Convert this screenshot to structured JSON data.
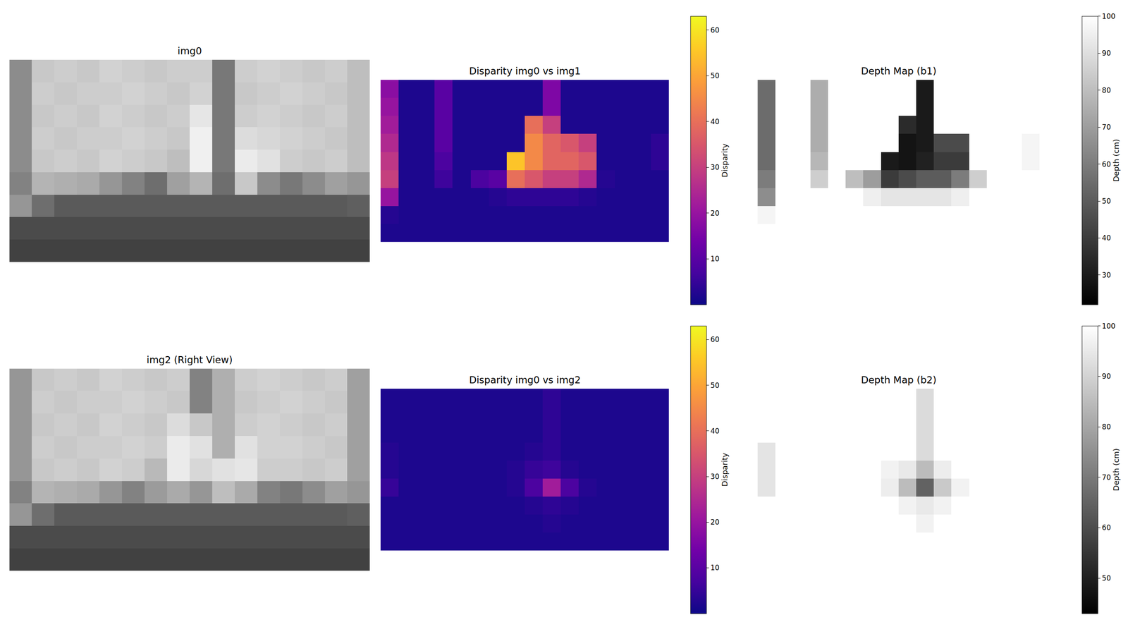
{
  "chart_data": [
    {
      "type": "image",
      "title": "img0",
      "color": "gray",
      "tick_labels": false,
      "zlim": [
        0,
        255
      ],
      "cells": [
        [
          140,
          200,
          205,
          200,
          210,
          205,
          200,
          205,
          205,
          120,
          205,
          210,
          205,
          200,
          205,
          190
        ],
        [
          140,
          205,
          200,
          205,
          205,
          210,
          205,
          200,
          210,
          120,
          200,
          205,
          210,
          205,
          200,
          190
        ],
        [
          140,
          200,
          205,
          200,
          210,
          205,
          200,
          205,
          230,
          120,
          205,
          210,
          205,
          200,
          205,
          190
        ],
        [
          140,
          205,
          200,
          205,
          205,
          210,
          205,
          200,
          240,
          120,
          220,
          215,
          210,
          205,
          200,
          190
        ],
        [
          140,
          200,
          205,
          200,
          210,
          205,
          200,
          190,
          240,
          120,
          235,
          225,
          205,
          200,
          205,
          190
        ],
        [
          130,
          180,
          175,
          170,
          150,
          130,
          110,
          160,
          180,
          110,
          200,
          140,
          120,
          140,
          160,
          150
        ],
        [
          150,
          110,
          90,
          90,
          90,
          90,
          90,
          90,
          90,
          90,
          90,
          90,
          90,
          90,
          90,
          95
        ],
        [
          75,
          75,
          75,
          75,
          75,
          75,
          75,
          75,
          75,
          75,
          75,
          75,
          75,
          75,
          75,
          75
        ],
        [
          65,
          65,
          65,
          65,
          65,
          65,
          65,
          65,
          65,
          65,
          65,
          65,
          65,
          65,
          65,
          65
        ]
      ]
    },
    {
      "type": "heatmap",
      "title": "Disparity img0 vs img1",
      "color": "plasma",
      "tick_labels": false,
      "colorbar": {
        "title": "Disparity",
        "range": [
          0,
          63
        ],
        "ticks": [
          10,
          20,
          30,
          40,
          50,
          60
        ]
      },
      "cells": [
        [
          18,
          2,
          2,
          10,
          2,
          2,
          2,
          2,
          2,
          16,
          2,
          2,
          2,
          2,
          2,
          2
        ],
        [
          20,
          2,
          2,
          10,
          2,
          2,
          2,
          2,
          2,
          16,
          2,
          2,
          2,
          2,
          2,
          2
        ],
        [
          22,
          2,
          2,
          10,
          2,
          2,
          2,
          2,
          40,
          30,
          2,
          2,
          2,
          2,
          2,
          2
        ],
        [
          25,
          2,
          2,
          10,
          2,
          2,
          2,
          2,
          45,
          38,
          35,
          30,
          2,
          2,
          2,
          4
        ],
        [
          28,
          2,
          2,
          8,
          2,
          2,
          2,
          55,
          45,
          38,
          38,
          35,
          2,
          2,
          2,
          4
        ],
        [
          30,
          2,
          2,
          6,
          2,
          8,
          10,
          40,
          35,
          30,
          30,
          25,
          3,
          2,
          2,
          2
        ],
        [
          20,
          2,
          2,
          2,
          2,
          2,
          3,
          4,
          4,
          4,
          4,
          3,
          2,
          2,
          2,
          2
        ],
        [
          3,
          2,
          2,
          2,
          2,
          2,
          2,
          2,
          2,
          2,
          2,
          2,
          2,
          2,
          2,
          2
        ],
        [
          2,
          2,
          2,
          2,
          2,
          2,
          2,
          2,
          2,
          2,
          2,
          2,
          2,
          2,
          2,
          2
        ]
      ]
    },
    {
      "type": "heatmap",
      "title": "Depth Map (b1)",
      "color": "gray",
      "tick_labels": false,
      "colorbar": {
        "title": "Depth (cm)",
        "range": [
          22,
          100
        ],
        "ticks": [
          30,
          40,
          50,
          60,
          70,
          80,
          90,
          100
        ]
      },
      "cells": [
        [
          55,
          100,
          100,
          75,
          100,
          100,
          100,
          100,
          100,
          30,
          100,
          100,
          100,
          100,
          100,
          100
        ],
        [
          55,
          100,
          100,
          75,
          100,
          100,
          100,
          100,
          100,
          30,
          100,
          100,
          100,
          100,
          100,
          100
        ],
        [
          55,
          100,
          100,
          75,
          100,
          100,
          100,
          100,
          35,
          30,
          100,
          100,
          100,
          100,
          100,
          100
        ],
        [
          55,
          100,
          100,
          75,
          100,
          100,
          100,
          100,
          28,
          30,
          45,
          45,
          100,
          100,
          100,
          97
        ],
        [
          55,
          100,
          100,
          78,
          100,
          100,
          100,
          30,
          28,
          32,
          40,
          40,
          100,
          100,
          100,
          97
        ],
        [
          60,
          100,
          100,
          85,
          100,
          80,
          70,
          40,
          45,
          50,
          50,
          60,
          85,
          100,
          100,
          100
        ],
        [
          65,
          100,
          100,
          100,
          100,
          100,
          95,
          92,
          92,
          92,
          92,
          95,
          100,
          100,
          100,
          100
        ],
        [
          97,
          100,
          100,
          100,
          100,
          100,
          100,
          100,
          100,
          100,
          100,
          100,
          100,
          100,
          100,
          100
        ],
        [
          100,
          100,
          100,
          100,
          100,
          100,
          100,
          100,
          100,
          100,
          100,
          100,
          100,
          100,
          100,
          100
        ]
      ]
    },
    {
      "type": "image",
      "title": "img2 (Right View)",
      "color": "gray",
      "tick_labels": false,
      "zlim": [
        0,
        255
      ],
      "cells": [
        [
          150,
          200,
          205,
          200,
          210,
          205,
          200,
          205,
          130,
          175,
          205,
          210,
          205,
          200,
          205,
          160
        ],
        [
          150,
          205,
          200,
          205,
          205,
          210,
          205,
          200,
          130,
          175,
          200,
          205,
          210,
          205,
          200,
          160
        ],
        [
          150,
          200,
          205,
          200,
          210,
          205,
          200,
          220,
          200,
          175,
          205,
          210,
          205,
          200,
          205,
          160
        ],
        [
          150,
          205,
          200,
          205,
          205,
          210,
          205,
          235,
          225,
          175,
          225,
          210,
          210,
          205,
          200,
          160
        ],
        [
          150,
          200,
          205,
          200,
          210,
          205,
          185,
          235,
          215,
          225,
          230,
          205,
          205,
          200,
          205,
          160
        ],
        [
          130,
          180,
          175,
          170,
          150,
          130,
          155,
          170,
          150,
          190,
          170,
          130,
          120,
          140,
          160,
          150
        ],
        [
          150,
          110,
          90,
          90,
          90,
          90,
          90,
          90,
          90,
          90,
          90,
          90,
          90,
          90,
          90,
          95
        ],
        [
          75,
          75,
          75,
          75,
          75,
          75,
          75,
          75,
          75,
          75,
          75,
          75,
          75,
          75,
          75,
          75
        ],
        [
          65,
          65,
          65,
          65,
          65,
          65,
          65,
          65,
          65,
          65,
          65,
          65,
          65,
          65,
          65,
          65
        ]
      ]
    },
    {
      "type": "heatmap",
      "title": "Disparity img0 vs img2",
      "color": "plasma",
      "tick_labels": false,
      "colorbar": {
        "title": "Disparity",
        "range": [
          0,
          63
        ],
        "ticks": [
          10,
          20,
          30,
          40,
          50,
          60
        ]
      },
      "cells": [
        [
          2,
          2,
          2,
          2,
          2,
          2,
          2,
          2,
          2,
          4,
          2,
          2,
          2,
          2,
          2,
          2
        ],
        [
          2,
          2,
          2,
          2,
          2,
          2,
          2,
          2,
          2,
          4,
          2,
          2,
          2,
          2,
          2,
          2
        ],
        [
          2,
          2,
          2,
          2,
          2,
          2,
          2,
          2,
          2,
          4,
          2,
          2,
          2,
          2,
          2,
          2
        ],
        [
          3,
          2,
          2,
          2,
          2,
          2,
          2,
          2,
          3,
          4,
          2,
          2,
          2,
          2,
          2,
          2
        ],
        [
          3,
          2,
          2,
          2,
          2,
          2,
          2,
          3,
          5,
          6,
          3,
          2,
          2,
          2,
          2,
          2
        ],
        [
          5,
          2,
          2,
          2,
          2,
          2,
          2,
          3,
          8,
          22,
          8,
          3,
          2,
          2,
          2,
          2
        ],
        [
          2,
          2,
          2,
          2,
          2,
          2,
          2,
          2,
          3,
          4,
          3,
          2,
          2,
          2,
          2,
          2
        ],
        [
          2,
          2,
          2,
          2,
          2,
          2,
          2,
          2,
          2,
          3,
          2,
          2,
          2,
          2,
          2,
          2
        ],
        [
          2,
          2,
          2,
          2,
          2,
          2,
          2,
          2,
          2,
          2,
          2,
          2,
          2,
          2,
          2,
          2
        ]
      ]
    },
    {
      "type": "heatmap",
      "title": "Depth Map (b2)",
      "color": "gray",
      "tick_labels": false,
      "colorbar": {
        "title": "Depth (cm)",
        "range": [
          43,
          100
        ],
        "ticks": [
          50,
          60,
          70,
          80,
          90,
          100
        ]
      },
      "cells": [
        [
          100,
          100,
          100,
          100,
          100,
          100,
          100,
          100,
          100,
          92,
          100,
          100,
          100,
          100,
          100,
          100
        ],
        [
          100,
          100,
          100,
          100,
          100,
          100,
          100,
          100,
          100,
          92,
          100,
          100,
          100,
          100,
          100,
          100
        ],
        [
          100,
          100,
          100,
          100,
          100,
          100,
          100,
          100,
          100,
          92,
          100,
          100,
          100,
          100,
          100,
          100
        ],
        [
          94,
          100,
          100,
          100,
          100,
          100,
          100,
          100,
          100,
          92,
          100,
          100,
          100,
          100,
          100,
          100
        ],
        [
          94,
          100,
          100,
          100,
          100,
          100,
          100,
          97,
          95,
          85,
          96,
          100,
          100,
          100,
          100,
          100
        ],
        [
          94,
          100,
          100,
          100,
          100,
          100,
          100,
          96,
          85,
          65,
          88,
          97,
          100,
          100,
          100,
          100
        ],
        [
          100,
          100,
          100,
          100,
          100,
          100,
          100,
          100,
          97,
          95,
          97,
          100,
          100,
          100,
          100,
          100
        ],
        [
          100,
          100,
          100,
          100,
          100,
          100,
          100,
          100,
          100,
          97,
          100,
          100,
          100,
          100,
          100,
          100
        ],
        [
          100,
          100,
          100,
          100,
          100,
          100,
          100,
          100,
          100,
          100,
          100,
          100,
          100,
          100,
          100,
          100
        ]
      ]
    }
  ]
}
